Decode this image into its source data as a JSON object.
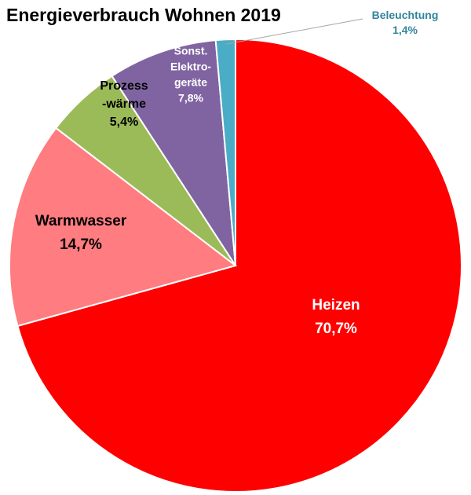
{
  "chart_data": {
    "type": "pie",
    "title": "Energieverbrauch Wohnen 2019",
    "slices": [
      {
        "name": "Heizen",
        "label_lines": [
          "Heizen",
          "70,7%"
        ],
        "value": 70.7,
        "color": "#ff0000",
        "label_color": "#ffffff"
      },
      {
        "name": "Warmwasser",
        "label_lines": [
          "Warmwasser",
          "14,7%"
        ],
        "value": 14.7,
        "color": "#ff7c80",
        "label_color": "#000000"
      },
      {
        "name": "Prozesswärme",
        "label_lines": [
          "Prozess",
          "-wärme",
          "5,4%"
        ],
        "value": 5.4,
        "color": "#9bbb59",
        "label_color": "#000000"
      },
      {
        "name": "Sonst. Elektrogeräte",
        "label_lines": [
          "Sonst.",
          "Elektro-",
          "geräte",
          "7,8%"
        ],
        "value": 7.8,
        "color": "#8064a2",
        "label_color": "#ffffff"
      },
      {
        "name": "Beleuchtung",
        "label_lines": [
          "Beleuchtung",
          "1,4%"
        ],
        "value": 1.4,
        "color": "#4bacc6",
        "label_color": "#31849b"
      }
    ],
    "start_angle": "12 o'clock",
    "direction": "clockwise",
    "legend": "none"
  }
}
